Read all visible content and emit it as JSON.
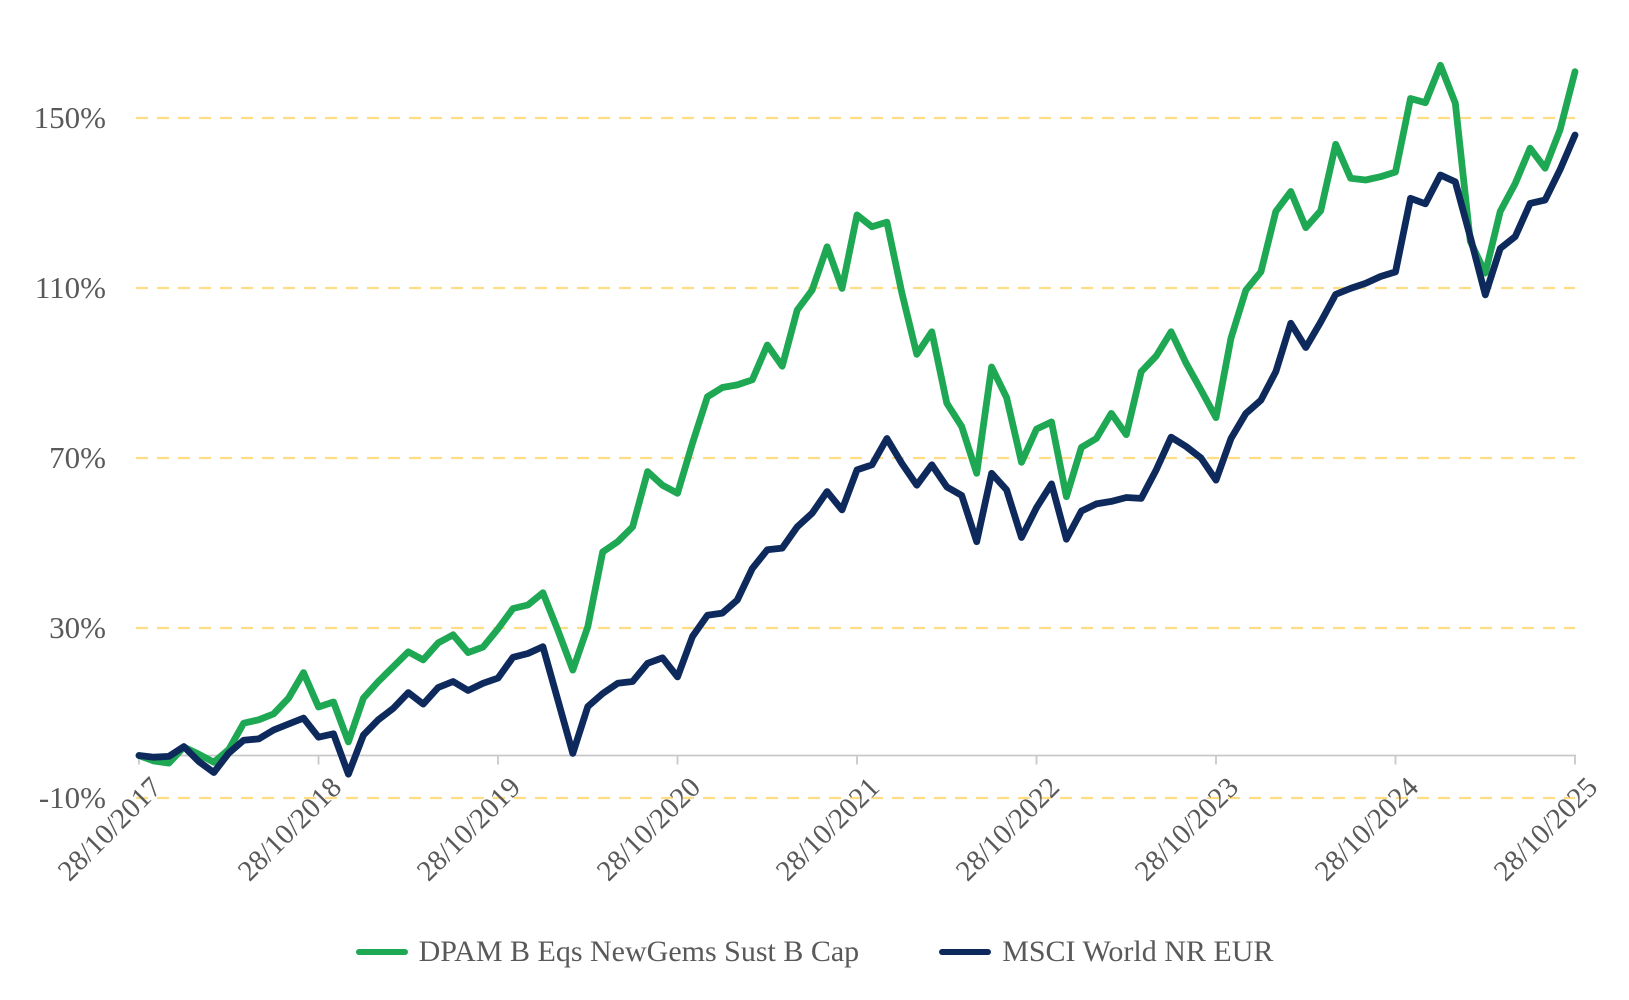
{
  "chart_data": {
    "type": "line",
    "title": "",
    "grid": "horizontal-dashed",
    "legend_position": "bottom-center",
    "x_tick_labels": [
      "28/10/2017",
      "28/10/2018",
      "28/10/2019",
      "28/10/2020",
      "28/10/2021",
      "28/10/2022",
      "28/10/2023",
      "28/10/2024",
      "28/10/2025"
    ],
    "y_tick_labels": [
      "150%",
      "110%",
      "70%",
      "30%",
      "-10%"
    ],
    "y_tick_values": [
      150,
      110,
      70,
      30,
      -10
    ],
    "ylim": [
      -10,
      150
    ],
    "x_points_per_year": 12,
    "series": [
      {
        "name": "DPAM B Eqs NewGems Sust B Cap",
        "color": "#1fa853",
        "values": [
          0,
          -1.3,
          -1.8,
          2,
          0.3,
          -1.6,
          1.4,
          7.6,
          8.4,
          9.8,
          13.5,
          19.5,
          11.4,
          12.6,
          3.2,
          13.5,
          17.4,
          20.9,
          24.4,
          22.5,
          26.5,
          28.4,
          24.2,
          25.5,
          29.8,
          34.6,
          35.4,
          38.3,
          29.5,
          20.1,
          30.3,
          47.9,
          50.3,
          53.8,
          66.8,
          63.6,
          61.7,
          73.5,
          84.4,
          86.6,
          87.2,
          88.4,
          96.6,
          91.6,
          104.8,
          109.5,
          119.7,
          109.9,
          127.2,
          124.4,
          125.5,
          108.8,
          94.4,
          99.7,
          82.9,
          77.4,
          66.4,
          91.4,
          84.2,
          69,
          76.8,
          78.5,
          60.9,
          72.5,
          74.6,
          80.5,
          75.5,
          90.3,
          94,
          99.7,
          92.3,
          86,
          79.5,
          98.2,
          109.5,
          113.8,
          128,
          132.7,
          124.2,
          128.2,
          143.8,
          135.8,
          135.4,
          136.2,
          137.3,
          154.6,
          153.6,
          162.4,
          153.5,
          121,
          113.5,
          128,
          134.6,
          142.9,
          138.2,
          147.2,
          160.9
        ]
      },
      {
        "name": "MSCI World NR EUR",
        "color": "#0e2a5c",
        "values": [
          0,
          -0.4,
          -0.2,
          2.1,
          -1.4,
          -4,
          0.6,
          3.6,
          3.9,
          6,
          7.4,
          8.8,
          4.3,
          5.1,
          -4.4,
          4.8,
          8.4,
          11.1,
          14.8,
          12.1,
          16,
          17.4,
          15.3,
          17,
          18.2,
          23.1,
          24,
          25.6,
          13.1,
          0.5,
          11.5,
          14.6,
          17,
          17.4,
          21.7,
          23,
          18.5,
          28,
          33,
          33.5,
          36.6,
          44,
          48.4,
          48.8,
          53.8,
          57,
          62.1,
          57.8,
          67.2,
          68.4,
          74.6,
          68.7,
          63.6,
          68.4,
          63.2,
          61.2,
          50.3,
          66.4,
          62.5,
          51.3,
          58.3,
          63.9,
          50.9,
          57.5,
          59.2,
          59.8,
          60.7,
          60.5,
          67.2,
          74.9,
          72.7,
          70,
          64.8,
          74.6,
          80.5,
          83.6,
          90.3,
          101.7,
          96,
          102,
          108.5,
          109.9,
          111.1,
          112.7,
          113.8,
          131.1,
          129.8,
          136.6,
          135,
          122,
          108.4,
          119.3,
          122.1,
          129.9,
          130.7,
          137.8,
          146
        ]
      }
    ]
  },
  "colors": {
    "gridline": "#ffdd85",
    "axis_line": "#c8c8c8",
    "tick_mark": "#c8c8c8",
    "label_text": "#595959"
  }
}
